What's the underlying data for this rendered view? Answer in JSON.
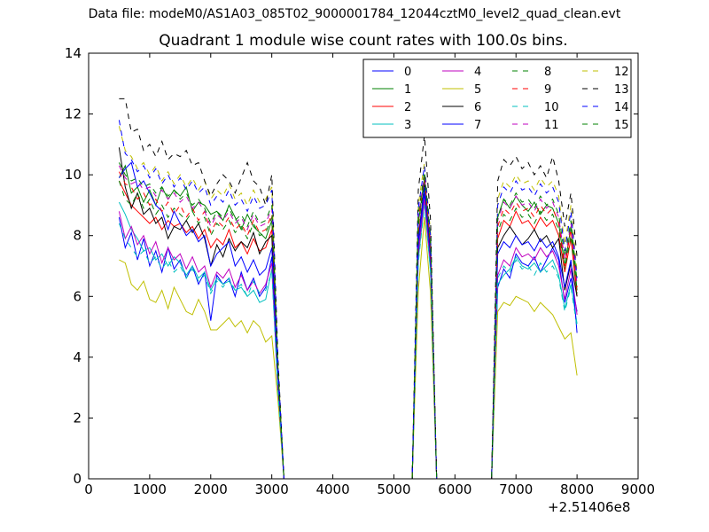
{
  "figure": {
    "suptitle": "Data file: modeM0/AS1A03_085T02_9000001784_12044cztM0_level2_quad_clean.evt",
    "title": "Quadrant 1 module wise count rates with 100.0s bins.",
    "x_offset_label": "+2.51406e8"
  },
  "chart_data": {
    "type": "line",
    "title": "Quadrant 1 module wise count rates with 100.0s bins.",
    "xlabel": "",
    "ylabel": "",
    "xlim": [
      0,
      9000
    ],
    "ylim": [
      0,
      14
    ],
    "x_offset": 251406000,
    "xticks": [
      0,
      1000,
      2000,
      3000,
      4000,
      5000,
      6000,
      7000,
      8000,
      9000
    ],
    "yticks": [
      0,
      2,
      4,
      6,
      8,
      10,
      12,
      14
    ],
    "grid": false,
    "legend": {
      "placement": "top-right",
      "columns": 4
    },
    "x": [
      500,
      600,
      700,
      800,
      900,
      1000,
      1100,
      1200,
      1300,
      1400,
      1500,
      1600,
      1700,
      1800,
      1900,
      2000,
      2100,
      2200,
      2300,
      2400,
      2500,
      2600,
      2700,
      2800,
      2900,
      3000,
      3100,
      3200,
      3300,
      5300,
      5400,
      5500,
      5600,
      5700,
      5800,
      6600,
      6700,
      6800,
      6900,
      7000,
      7100,
      7200,
      7300,
      7400,
      7500,
      7600,
      7700,
      7800,
      7900,
      8000
    ],
    "series": [
      {
        "name": "0",
        "color": "#0000ff",
        "dash": "solid",
        "values": [
          8.6,
          7.6,
          8.1,
          7.2,
          7.9,
          7.0,
          7.5,
          6.8,
          7.6,
          6.9,
          7.2,
          6.6,
          7.0,
          6.4,
          6.8,
          5.2,
          6.7,
          6.4,
          6.6,
          6.0,
          6.8,
          6.2,
          6.6,
          6.0,
          6.3,
          7.3,
          3.0,
          0,
          0,
          0,
          7.5,
          9.4,
          7.0,
          0,
          0,
          0,
          6.3,
          6.9,
          6.6,
          7.4,
          7.1,
          7.0,
          7.3,
          6.8,
          7.2,
          7.6,
          7.2,
          5.8,
          6.6,
          5.5
        ]
      },
      {
        "name": "1",
        "color": "#008000",
        "dash": "solid",
        "values": [
          9.9,
          10.3,
          9.4,
          9.6,
          9.1,
          9.5,
          9.0,
          9.6,
          9.2,
          9.5,
          9.3,
          9.6,
          8.8,
          9.1,
          9.0,
          8.7,
          8.8,
          8.5,
          9.0,
          8.6,
          8.2,
          8.7,
          8.3,
          8.1,
          7.9,
          8.5,
          3.5,
          0,
          0,
          0,
          8.4,
          9.9,
          7.6,
          0,
          0,
          0,
          8.6,
          9.2,
          8.9,
          9.3,
          9.0,
          8.8,
          9.1,
          8.7,
          9.0,
          8.9,
          8.4,
          7.0,
          8.3,
          6.2
        ]
      },
      {
        "name": "2",
        "color": "#ff0000",
        "dash": "solid",
        "values": [
          9.8,
          9.4,
          9.0,
          8.8,
          8.6,
          8.4,
          8.6,
          8.2,
          8.5,
          8.3,
          8.4,
          8.1,
          8.3,
          7.9,
          8.2,
          7.6,
          7.9,
          7.7,
          8.2,
          7.6,
          7.8,
          7.4,
          7.9,
          7.5,
          7.6,
          8.2,
          3.4,
          0,
          0,
          0,
          8.0,
          9.6,
          7.4,
          0,
          0,
          0,
          7.9,
          8.5,
          8.3,
          8.8,
          8.4,
          8.5,
          8.2,
          8.6,
          8.3,
          8.5,
          8.0,
          6.8,
          7.9,
          6.0
        ]
      },
      {
        "name": "3",
        "color": "#00bfbf",
        "dash": "solid",
        "values": [
          9.1,
          8.7,
          8.2,
          7.9,
          7.5,
          7.6,
          7.2,
          7.4,
          7.0,
          7.3,
          7.1,
          6.7,
          7.0,
          6.6,
          6.8,
          6.2,
          6.6,
          6.4,
          6.5,
          6.2,
          6.3,
          6.0,
          6.2,
          5.8,
          5.9,
          6.9,
          2.9,
          0,
          0,
          0,
          7.2,
          9.1,
          6.8,
          0,
          0,
          0,
          6.4,
          6.7,
          6.9,
          7.3,
          7.0,
          6.9,
          7.1,
          6.8,
          7.0,
          7.2,
          6.7,
          5.6,
          6.4,
          5.1
        ]
      },
      {
        "name": "4",
        "color": "#bf00bf",
        "dash": "solid",
        "values": [
          8.8,
          7.9,
          8.3,
          7.7,
          8.0,
          7.4,
          7.8,
          7.1,
          7.6,
          7.2,
          7.4,
          6.9,
          7.3,
          6.8,
          7.0,
          6.3,
          6.8,
          6.6,
          6.9,
          6.3,
          6.7,
          6.2,
          6.5,
          6.1,
          6.4,
          7.1,
          3.0,
          0,
          0,
          0,
          7.4,
          9.2,
          7.0,
          0,
          0,
          0,
          6.7,
          7.2,
          7.0,
          7.6,
          7.3,
          7.4,
          7.2,
          7.6,
          7.3,
          7.5,
          7.0,
          5.9,
          6.9,
          5.4
        ]
      },
      {
        "name": "5",
        "color": "#bfbf00",
        "dash": "solid",
        "values": [
          7.2,
          7.1,
          6.4,
          6.2,
          6.5,
          5.9,
          5.8,
          6.2,
          5.6,
          6.3,
          5.9,
          5.5,
          5.4,
          5.9,
          5.5,
          4.9,
          4.9,
          5.1,
          5.3,
          5.0,
          5.2,
          4.8,
          5.2,
          5.0,
          4.5,
          4.7,
          2.6,
          0,
          0,
          0,
          6.2,
          8.6,
          6.1,
          0,
          0,
          0,
          5.5,
          5.8,
          5.7,
          6.0,
          5.9,
          5.8,
          5.5,
          5.8,
          5.6,
          5.4,
          5.0,
          4.6,
          4.8,
          3.4
        ]
      },
      {
        "name": "6",
        "color": "#000000",
        "dash": "solid",
        "values": [
          10.9,
          9.6,
          8.9,
          9.4,
          8.7,
          8.9,
          8.4,
          8.6,
          7.9,
          8.3,
          8.2,
          8.5,
          8.1,
          8.4,
          7.9,
          7.0,
          7.7,
          7.3,
          7.9,
          7.5,
          7.8,
          7.6,
          8.1,
          7.4,
          7.8,
          8.0,
          3.3,
          0,
          0,
          0,
          7.8,
          9.7,
          7.3,
          0,
          0,
          0,
          7.6,
          8.0,
          8.3,
          8.0,
          7.7,
          7.9,
          8.2,
          7.8,
          8.0,
          7.6,
          7.9,
          6.2,
          7.1,
          6.0
        ]
      },
      {
        "name": "7",
        "color": "#0000ff",
        "dash": "solid",
        "values": [
          9.9,
          10.2,
          10.4,
          9.6,
          9.8,
          9.4,
          9.0,
          8.8,
          8.2,
          8.8,
          8.4,
          8.0,
          8.2,
          7.8,
          8.0,
          7.0,
          7.4,
          7.6,
          7.8,
          7.0,
          7.3,
          6.8,
          7.2,
          6.7,
          6.9,
          7.6,
          3.2,
          0,
          0,
          0,
          7.8,
          9.6,
          7.3,
          0,
          0,
          0,
          7.4,
          7.8,
          7.6,
          8.0,
          7.7,
          7.8,
          7.5,
          7.9,
          7.6,
          7.8,
          7.3,
          6.3,
          7.2,
          4.8
        ]
      },
      {
        "name": "8",
        "color": "#008000",
        "dash": "dash",
        "values": [
          9.8,
          9.2,
          9.0,
          9.4,
          8.9,
          9.2,
          8.7,
          9.0,
          8.6,
          8.9,
          8.7,
          8.5,
          8.8,
          8.4,
          8.6,
          8.0,
          8.4,
          8.2,
          8.5,
          8.1,
          8.3,
          7.9,
          8.4,
          8.0,
          8.1,
          8.6,
          3.5,
          0,
          0,
          0,
          8.3,
          9.8,
          7.5,
          0,
          0,
          0,
          8.1,
          8.7,
          8.5,
          8.9,
          8.6,
          8.7,
          8.4,
          8.8,
          8.5,
          8.7,
          8.2,
          6.9,
          8.0,
          6.1
        ]
      },
      {
        "name": "9",
        "color": "#ff0000",
        "dash": "dash",
        "values": [
          10.1,
          9.7,
          9.6,
          9.2,
          9.4,
          9.0,
          9.2,
          8.8,
          9.1,
          8.7,
          9.0,
          8.6,
          8.9,
          8.5,
          8.8,
          8.1,
          8.5,
          8.3,
          8.6,
          8.2,
          8.4,
          8.0,
          8.5,
          8.1,
          8.2,
          8.7,
          3.6,
          0,
          0,
          0,
          8.5,
          10.0,
          7.7,
          0,
          0,
          0,
          8.3,
          8.9,
          8.7,
          9.1,
          8.8,
          8.9,
          8.6,
          9.0,
          8.7,
          8.9,
          8.4,
          7.0,
          8.2,
          6.3
        ]
      },
      {
        "name": "10",
        "color": "#00bfbf",
        "dash": "dash",
        "values": [
          8.4,
          7.9,
          7.6,
          7.3,
          7.5,
          7.1,
          7.3,
          6.9,
          7.2,
          6.8,
          7.0,
          6.6,
          6.9,
          6.5,
          6.7,
          6.1,
          6.5,
          6.3,
          6.6,
          6.2,
          6.4,
          6.0,
          6.5,
          6.1,
          6.2,
          6.8,
          2.9,
          0,
          0,
          0,
          7.1,
          9.0,
          6.8,
          0,
          0,
          0,
          6.6,
          7.0,
          6.8,
          7.2,
          6.9,
          7.0,
          6.7,
          7.1,
          6.8,
          7.0,
          6.6,
          5.5,
          6.3,
          5.0
        ]
      },
      {
        "name": "11",
        "color": "#bf00bf",
        "dash": "dash",
        "values": [
          10.3,
          9.9,
          9.7,
          9.8,
          9.5,
          9.6,
          9.3,
          9.5,
          9.2,
          9.4,
          9.1,
          9.3,
          8.9,
          9.1,
          8.8,
          8.3,
          8.7,
          8.5,
          8.8,
          8.4,
          8.6,
          8.2,
          8.7,
          8.3,
          8.4,
          8.9,
          3.6,
          0,
          0,
          0,
          8.6,
          10.0,
          7.8,
          0,
          0,
          0,
          8.5,
          9.1,
          8.9,
          9.3,
          9.0,
          9.1,
          8.8,
          9.2,
          8.9,
          9.1,
          8.6,
          7.2,
          8.4,
          6.4
        ]
      },
      {
        "name": "12",
        "color": "#bfbf00",
        "dash": "dash",
        "values": [
          11.6,
          10.8,
          10.6,
          10.2,
          10.4,
          10.0,
          10.3,
          9.8,
          10.1,
          9.7,
          10.0,
          9.6,
          9.9,
          9.5,
          9.8,
          9.2,
          9.5,
          9.3,
          9.7,
          9.2,
          9.4,
          9.0,
          9.5,
          9.1,
          9.2,
          9.6,
          3.8,
          0,
          0,
          0,
          9.0,
          10.4,
          8.1,
          0,
          0,
          0,
          9.2,
          9.8,
          9.6,
          10.0,
          9.7,
          9.8,
          9.5,
          9.9,
          9.6,
          9.8,
          9.3,
          7.7,
          9.0,
          6.8
        ]
      },
      {
        "name": "13",
        "color": "#000000",
        "dash": "dash",
        "values": [
          12.5,
          12.5,
          11.4,
          11.5,
          10.8,
          11.0,
          10.6,
          11.1,
          10.5,
          10.7,
          10.6,
          10.8,
          10.3,
          10.4,
          9.8,
          9.3,
          9.7,
          10.0,
          9.8,
          9.4,
          9.9,
          10.4,
          9.8,
          9.6,
          9.0,
          10.0,
          4.0,
          0,
          0,
          0,
          9.5,
          11.3,
          8.5,
          0,
          0,
          0,
          9.8,
          10.5,
          10.3,
          10.6,
          10.2,
          10.4,
          10.0,
          10.3,
          9.9,
          10.6,
          9.8,
          8.3,
          9.4,
          7.3
        ]
      },
      {
        "name": "14",
        "color": "#0000ff",
        "dash": "dash",
        "values": [
          11.8,
          10.7,
          10.5,
          10.1,
          10.3,
          9.9,
          10.2,
          9.7,
          10.0,
          9.6,
          9.9,
          9.5,
          9.8,
          9.4,
          9.6,
          9.0,
          9.3,
          9.1,
          9.5,
          9.0,
          9.2,
          8.8,
          9.3,
          8.9,
          9.0,
          9.5,
          3.8,
          0,
          0,
          0,
          8.9,
          10.3,
          8.0,
          0,
          0,
          0,
          9.0,
          9.6,
          9.4,
          9.8,
          9.5,
          9.6,
          9.3,
          9.7,
          9.4,
          9.6,
          9.1,
          7.5,
          8.8,
          6.6
        ]
      },
      {
        "name": "15",
        "color": "#008000",
        "dash": "dash",
        "values": [
          10.4,
          10.0,
          9.8,
          9.9,
          9.6,
          9.7,
          9.4,
          9.6,
          9.3,
          9.5,
          9.2,
          9.4,
          9.0,
          9.2,
          8.9,
          8.4,
          8.8,
          8.6,
          8.9,
          8.5,
          8.7,
          8.3,
          8.8,
          8.4,
          8.5,
          9.0,
          3.6,
          0,
          0,
          0,
          8.7,
          10.1,
          7.9,
          0,
          0,
          0,
          8.6,
          9.2,
          9.0,
          9.4,
          9.1,
          9.2,
          8.9,
          9.3,
          9.0,
          9.2,
          8.7,
          7.3,
          8.5,
          6.5
        ]
      }
    ]
  }
}
